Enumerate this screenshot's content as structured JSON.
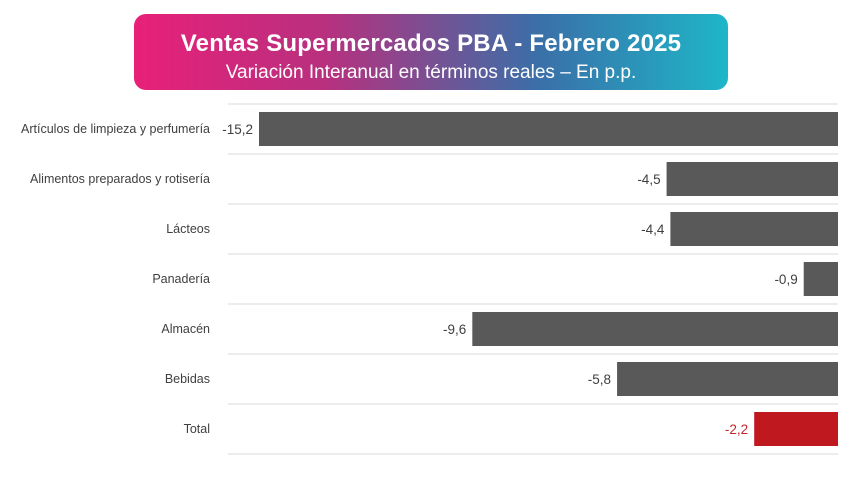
{
  "header": {
    "title": "Ventas Supermercados PBA - Febrero 2025",
    "subtitle": "Variación Interanual en términos reales – En p.p."
  },
  "colors": {
    "bar_default": "#595959",
    "bar_total": "#c0181f",
    "title_gradient": [
      "#e8207a",
      "#1eb6c8"
    ],
    "gridline": "#d9d9d9"
  },
  "chart_data": {
    "type": "bar",
    "orientation": "horizontal",
    "title": "Ventas Supermercados PBA - Febrero 2025",
    "subtitle": "Variación Interanual en términos reales – En p.p.",
    "categories": [
      "Artículos de limpieza y perfumería",
      "Alimentos preparados y rotisería",
      "Lácteos",
      "Panadería",
      "Almacén",
      "Bebidas",
      "Total"
    ],
    "values": [
      -15.2,
      -4.5,
      -4.4,
      -0.9,
      -9.6,
      -5.8,
      -2.2
    ],
    "value_labels": [
      "-15,2",
      "-4,5",
      "-4,4",
      "-0,9",
      "-9,6",
      "-5,8",
      "-2,2"
    ],
    "highlight": "Total",
    "xlim": [
      -16,
      0
    ],
    "grid": true,
    "legend": "none"
  }
}
